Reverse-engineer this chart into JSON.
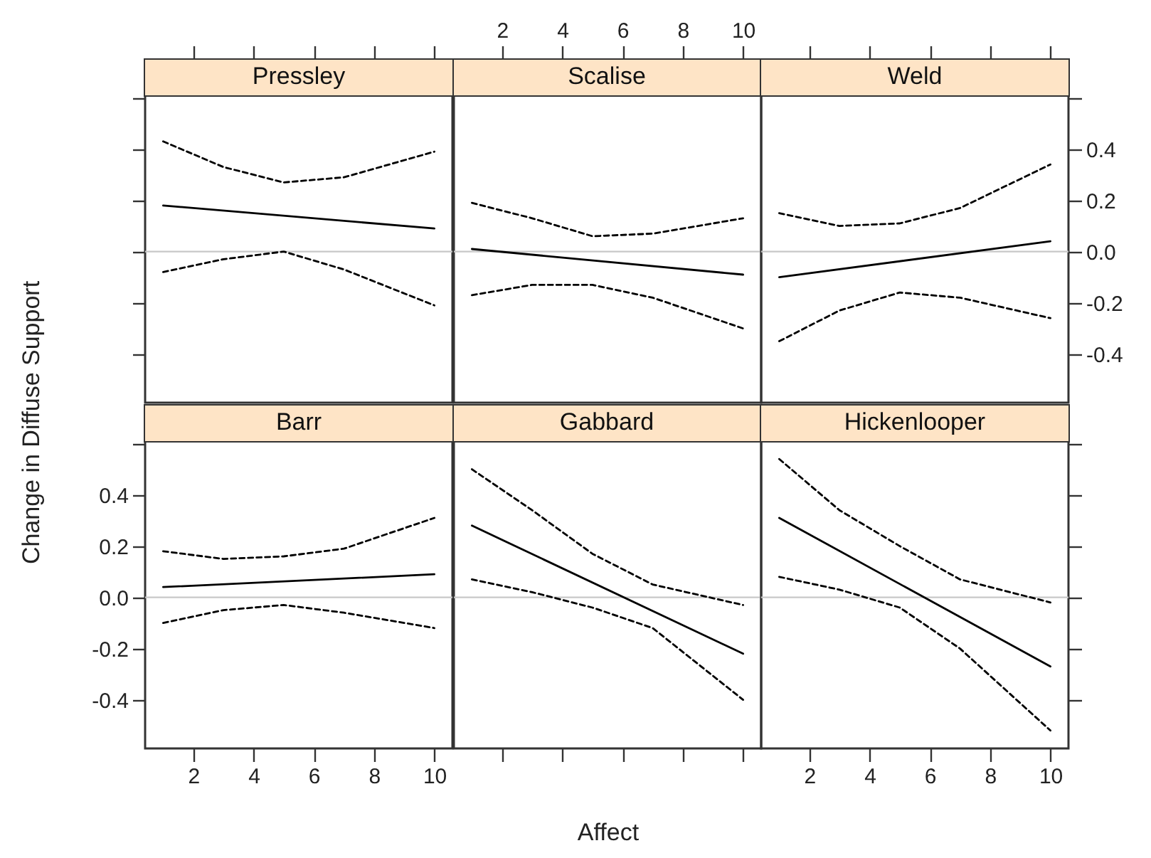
{
  "chart_data": [
    {
      "type": "line",
      "title": "Pressley",
      "xlim": [
        0.4,
        10.6
      ],
      "xticks": [
        2,
        4,
        6,
        8,
        10
      ],
      "ylim": [
        -0.59,
        0.61
      ],
      "yticks": [
        {
          "value": 0.6,
          "label": null
        },
        {
          "value": 0.4,
          "label": null
        },
        {
          "value": 0.2,
          "label": null
        },
        {
          "value": 0,
          "label": null
        },
        {
          "value": -0.2,
          "label": null
        },
        {
          "value": -0.4,
          "label": null
        }
      ],
      "tick_labels": false,
      "ref_lines": [
        {
          "axis": "y",
          "value": 0,
          "color": "#c8c8c8"
        }
      ],
      "series": [
        {
          "x": [
            1,
            10
          ],
          "values": [
            0.18,
            0.09
          ],
          "color": "#000000",
          "line_style": "solid"
        },
        {
          "x": [
            1,
            3,
            5,
            7,
            10
          ],
          "values": [
            0.43,
            0.33,
            0.27,
            0.29,
            0.39
          ],
          "color": "#000000",
          "line_style": "dashed"
        },
        {
          "x": [
            1,
            3,
            5,
            7,
            10
          ],
          "values": [
            -0.08,
            -0.03,
            0.0,
            -0.07,
            -0.21
          ],
          "color": "#000000",
          "line_style": "dashed"
        }
      ]
    },
    {
      "type": "line",
      "title": "Scalise",
      "xlim": [
        0.4,
        10.6
      ],
      "xticks": [
        2,
        4,
        6,
        8,
        10
      ],
      "ylim": [
        -0.59,
        0.61
      ],
      "tick_labels": "x",
      "ref_lines": [
        {
          "axis": "y",
          "value": 0,
          "color": "#c8c8c8"
        }
      ],
      "series": [
        {
          "x": [
            1,
            10
          ],
          "values": [
            0.01,
            -0.09
          ],
          "color": "#000000",
          "line_style": "solid"
        },
        {
          "x": [
            1,
            3,
            5,
            7,
            10
          ],
          "values": [
            0.19,
            0.13,
            0.06,
            0.07,
            0.13
          ],
          "color": "#000000",
          "line_style": "dashed"
        },
        {
          "x": [
            1,
            3,
            5,
            7,
            10
          ],
          "values": [
            -0.17,
            -0.13,
            -0.13,
            -0.18,
            -0.3
          ],
          "color": "#000000",
          "line_style": "dashed"
        }
      ]
    },
    {
      "type": "line",
      "title": "Weld",
      "xlim": [
        0.4,
        10.6
      ],
      "xticks": [
        2,
        4,
        6,
        8,
        10
      ],
      "ylim": [
        -0.59,
        0.61
      ],
      "yticks": [
        {
          "value": 0.6,
          "label": null
        },
        0.4,
        0.2,
        {
          "value": 0,
          "label": "0.0"
        },
        -0.2,
        -0.4
      ],
      "tick_labels": "y",
      "ref_lines": [
        {
          "axis": "y",
          "value": 0,
          "color": "#c8c8c8"
        }
      ],
      "series": [
        {
          "x": [
            1,
            10
          ],
          "values": [
            -0.1,
            0.04
          ],
          "color": "#000000",
          "line_style": "solid"
        },
        {
          "x": [
            1,
            3,
            5,
            7,
            10
          ],
          "values": [
            0.15,
            0.1,
            0.11,
            0.17,
            0.34
          ],
          "color": "#000000",
          "line_style": "dashed"
        },
        {
          "x": [
            1,
            3,
            5,
            7,
            10
          ],
          "values": [
            -0.35,
            -0.23,
            -0.16,
            -0.18,
            -0.26
          ],
          "color": "#000000",
          "line_style": "dashed"
        }
      ]
    },
    {
      "type": "line",
      "title": "Barr",
      "ylabel": "Change in Diffuse Support",
      "xlim": [
        0.4,
        10.6
      ],
      "xticks": [
        2,
        4,
        6,
        8,
        10
      ],
      "ylim": [
        -0.59,
        0.61
      ],
      "yticks": [
        {
          "value": 0.6,
          "label": null
        },
        0.4,
        0.2,
        {
          "value": 0,
          "label": "0.0"
        },
        -0.2,
        -0.4
      ],
      "ref_lines": [
        {
          "axis": "y",
          "value": 0,
          "color": "#c8c8c8"
        }
      ],
      "series": [
        {
          "x": [
            1,
            10
          ],
          "values": [
            0.04,
            0.09
          ],
          "color": "#000000",
          "line_style": "solid"
        },
        {
          "x": [
            1,
            3,
            5,
            7,
            10
          ],
          "values": [
            0.18,
            0.15,
            0.16,
            0.19,
            0.31
          ],
          "color": "#000000",
          "line_style": "dashed"
        },
        {
          "x": [
            1,
            3,
            5,
            7,
            10
          ],
          "values": [
            -0.1,
            -0.05,
            -0.03,
            -0.06,
            -0.12
          ],
          "color": "#000000",
          "line_style": "dashed"
        }
      ]
    },
    {
      "type": "line",
      "title": "Gabbard",
      "xlabel": "Affect",
      "xlim": [
        0.4,
        10.6
      ],
      "xticks": [
        2,
        4,
        6,
        8,
        10
      ],
      "ylim": [
        -0.59,
        0.61
      ],
      "tick_labels": false,
      "ref_lines": [
        {
          "axis": "y",
          "value": 0,
          "color": "#c8c8c8"
        }
      ],
      "series": [
        {
          "x": [
            1,
            10
          ],
          "values": [
            0.28,
            -0.22
          ],
          "color": "#000000",
          "line_style": "solid"
        },
        {
          "x": [
            1,
            3,
            5,
            7,
            10
          ],
          "values": [
            0.5,
            0.34,
            0.17,
            0.05,
            -0.03
          ],
          "color": "#000000",
          "line_style": "dashed"
        },
        {
          "x": [
            1,
            3,
            5,
            7,
            10
          ],
          "values": [
            0.07,
            0.02,
            -0.04,
            -0.12,
            -0.4
          ],
          "color": "#000000",
          "line_style": "dashed"
        }
      ]
    },
    {
      "type": "line",
      "title": "Hickenlooper",
      "xlim": [
        0.4,
        10.6
      ],
      "xticks": [
        2,
        4,
        6,
        8,
        10
      ],
      "ylim": [
        -0.59,
        0.61
      ],
      "yticks": [
        {
          "value": 0.6,
          "label": null
        },
        {
          "value": 0.4,
          "label": null
        },
        {
          "value": 0.2,
          "label": null
        },
        {
          "value": 0,
          "label": null
        },
        {
          "value": -0.2,
          "label": null
        },
        {
          "value": -0.4,
          "label": null
        }
      ],
      "tick_labels": "x",
      "ref_lines": [
        {
          "axis": "y",
          "value": 0,
          "color": "#c8c8c8"
        }
      ],
      "series": [
        {
          "x": [
            1,
            10
          ],
          "values": [
            0.31,
            -0.27
          ],
          "color": "#000000",
          "line_style": "solid"
        },
        {
          "x": [
            1,
            3,
            5,
            7,
            10
          ],
          "values": [
            0.54,
            0.34,
            0.2,
            0.07,
            -0.02
          ],
          "color": "#000000",
          "line_style": "dashed"
        },
        {
          "x": [
            1,
            3,
            5,
            7,
            10
          ],
          "values": [
            0.08,
            0.03,
            -0.04,
            -0.2,
            -0.52
          ],
          "color": "#000000",
          "line_style": "dashed"
        }
      ]
    }
  ]
}
